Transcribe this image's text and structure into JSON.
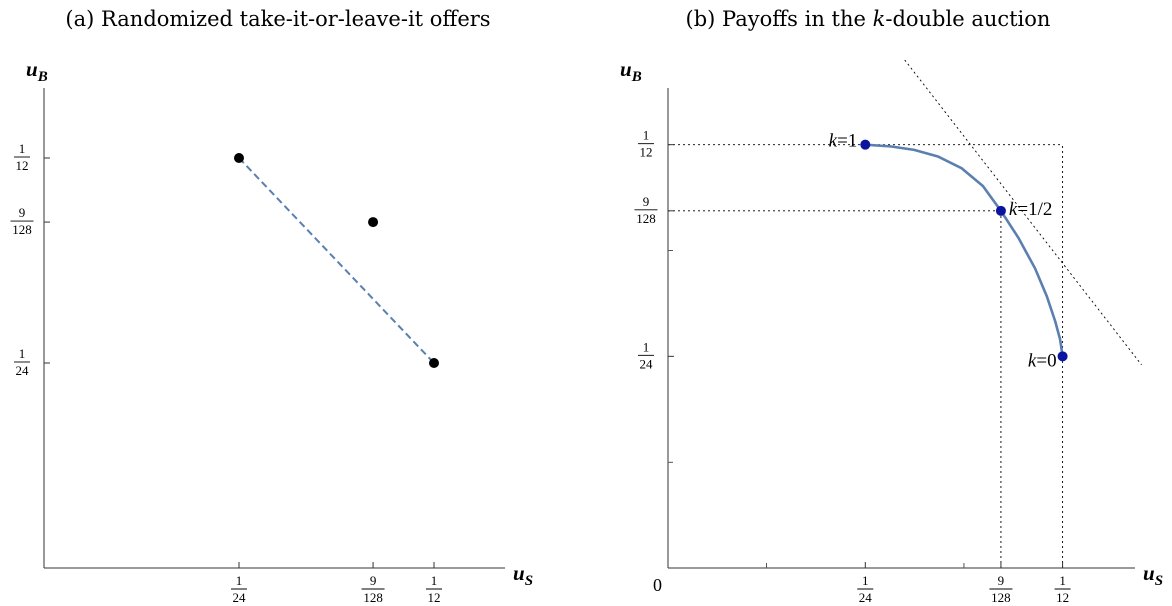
{
  "chart_data": [
    {
      "type": "scatter",
      "caption": "(a) Randomized take-it-or-leave-it offers",
      "xlabel": "u",
      "xlabel_sub": "S",
      "ylabel": "u",
      "ylabel_sub": "B",
      "xlim": [
        0,
        0.1
      ],
      "ylim": [
        0,
        0.1
      ],
      "x_ticks": [
        {
          "value": 0.041667,
          "num": "1",
          "den": "24"
        },
        {
          "value": 0.0703125,
          "num": "9",
          "den": "128"
        },
        {
          "value": 0.083333,
          "num": "1",
          "den": "12"
        }
      ],
      "y_ticks": [
        {
          "value": 0.083333,
          "num": "1",
          "den": "12"
        },
        {
          "value": 0.0703125,
          "num": "9",
          "den": "128"
        },
        {
          "value": 0.041667,
          "num": "1",
          "den": "24"
        }
      ],
      "points": [
        {
          "x": 0.041667,
          "y": 0.083333
        },
        {
          "x": 0.0703125,
          "y": 0.0703125
        },
        {
          "x": 0.083333,
          "y": 0.041667
        }
      ],
      "dashed_line": [
        [
          0.041667,
          0.083333
        ],
        [
          0.083333,
          0.041667
        ]
      ],
      "grid": false
    },
    {
      "type": "line",
      "caption": "(b) Payoffs in the k-double auction",
      "xlabel": "u",
      "xlabel_sub": "S",
      "ylabel": "u",
      "ylabel_sub": "B",
      "origin_label": "0",
      "xlim": [
        0,
        0.1
      ],
      "ylim": [
        0,
        0.1
      ],
      "x_ticks": [
        {
          "value": 0.041667,
          "num": "1",
          "den": "24"
        },
        {
          "value": 0.0703125,
          "num": "9",
          "den": "128"
        },
        {
          "value": 0.083333,
          "num": "1",
          "den": "12"
        }
      ],
      "y_ticks": [
        {
          "value": 0.083333,
          "num": "1",
          "den": "12"
        },
        {
          "value": 0.0703125,
          "num": "9",
          "den": "128"
        },
        {
          "value": 0.041667,
          "num": "1",
          "den": "24"
        }
      ],
      "x_minor_ticks": [
        0.0208,
        0.0625
      ],
      "y_minor_ticks": [
        0.0208,
        0.0625
      ],
      "points": [
        {
          "x": 0.041667,
          "y": 0.083333,
          "label": "k=1"
        },
        {
          "x": 0.0703125,
          "y": 0.0703125,
          "label": "k=1/2"
        },
        {
          "x": 0.083333,
          "y": 0.041667,
          "label": "k=0"
        }
      ],
      "curve": [
        [
          0.041667,
          0.083333
        ],
        [
          0.047,
          0.083
        ],
        [
          0.052,
          0.0823
        ],
        [
          0.057,
          0.081
        ],
        [
          0.062,
          0.0787
        ],
        [
          0.0665,
          0.0752
        ],
        [
          0.0703125,
          0.0703125
        ],
        [
          0.074,
          0.065
        ],
        [
          0.0775,
          0.059
        ],
        [
          0.08,
          0.0535
        ],
        [
          0.0818,
          0.0485
        ],
        [
          0.0828,
          0.045
        ],
        [
          0.083333,
          0.041667
        ]
      ],
      "tangent_line": [
        [
          0.05,
          0.1
        ],
        [
          0.1,
          0.04
        ]
      ],
      "guides": [
        [
          0.0703125,
          0.0703125
        ],
        [
          0.083333,
          0.083333
        ]
      ],
      "grid": false
    }
  ]
}
